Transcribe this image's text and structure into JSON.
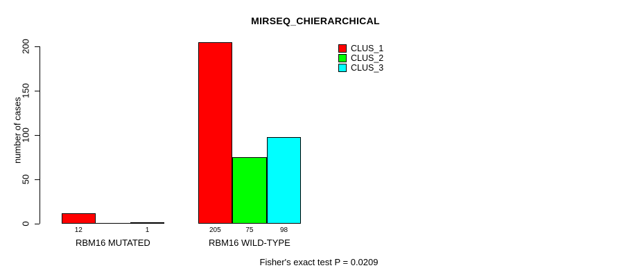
{
  "chart_data": {
    "type": "bar",
    "title": "MIRSEQ_CHIERARCHICAL",
    "ylabel": "number of cases",
    "xlabel": "",
    "ylim": [
      0,
      200
    ],
    "yticks": [
      0,
      50,
      100,
      150,
      200
    ],
    "grid": false,
    "legend_position": "top-right-inside",
    "categories": [
      "RBM16 MUTATED",
      "RBM16 WILD-TYPE"
    ],
    "series": [
      {
        "name": "CLUS_1",
        "color": "#ff0000",
        "values": [
          12,
          205
        ]
      },
      {
        "name": "CLUS_2",
        "color": "#00ff00",
        "values": [
          0,
          75
        ]
      },
      {
        "name": "CLUS_3",
        "color": "#00ffff",
        "values": [
          1,
          98
        ]
      }
    ],
    "bar_value_labels": [
      [
        "12",
        "",
        "1"
      ],
      [
        "205",
        "75",
        "98"
      ]
    ],
    "annotation": "Fisher's exact test P = 0.0209"
  },
  "colors": {
    "background": "#ffffff",
    "text": "#000000",
    "axis": "#000000",
    "bar_border": "#000000"
  }
}
